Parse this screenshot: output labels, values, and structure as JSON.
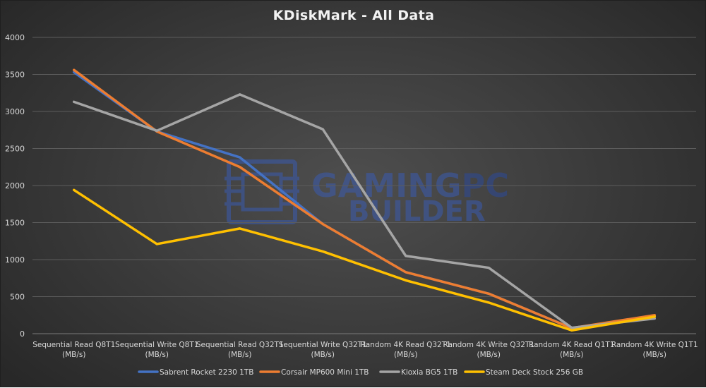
{
  "chart_data": {
    "type": "line",
    "title": "KDiskMark - All Data",
    "xlabel": "",
    "ylabel": "",
    "ylim": [
      0,
      4000
    ],
    "yticks": [
      0,
      500,
      1000,
      1500,
      2000,
      2500,
      3000,
      3500,
      4000
    ],
    "grid": true,
    "legend_position": "bottom",
    "categories": [
      [
        "Sequential Read Q8T1",
        "(MB/s)"
      ],
      [
        "Sequential Write Q8T1",
        "(MB/s)"
      ],
      [
        "Sequential Read Q32T1",
        "(MB/s)"
      ],
      [
        "Sequential Write Q32T1",
        "(MB/s)"
      ],
      [
        "Random 4K Read Q32T1",
        "(MB/s)"
      ],
      [
        "Random 4K Write Q32T1",
        "(MB/s)"
      ],
      [
        "Random 4K Read Q1T1",
        "(MB/s)"
      ],
      [
        "Random 4K Write Q1T1",
        "(MB/s)"
      ]
    ],
    "series": [
      {
        "name": "Sabrent Rocket 2230 1TB",
        "color": "#4472c4",
        "values": [
          3530,
          2730,
          2380,
          1480,
          830,
          540,
          75,
          240
        ]
      },
      {
        "name": "Corsair MP600 Mini 1TB",
        "color": "#ed7d31",
        "values": [
          3560,
          2730,
          2250,
          1480,
          830,
          540,
          75,
          250
        ]
      },
      {
        "name": "Kioxia BG5 1TB",
        "color": "#a5a5a5",
        "values": [
          3130,
          2740,
          3230,
          2760,
          1050,
          890,
          80,
          205
        ]
      },
      {
        "name": "Steam Deck Stock 256 GB",
        "color": "#ffc000",
        "values": [
          1940,
          1210,
          1420,
          1110,
          720,
          420,
          45,
          230
        ]
      }
    ]
  },
  "watermark": {
    "line1": "GAMINGPC",
    "line1_bright": "GAMING",
    "line1_dim": "PC",
    "line2": "BUILDER",
    "color": "#3a5bb0",
    "logo": "chip-logo"
  }
}
